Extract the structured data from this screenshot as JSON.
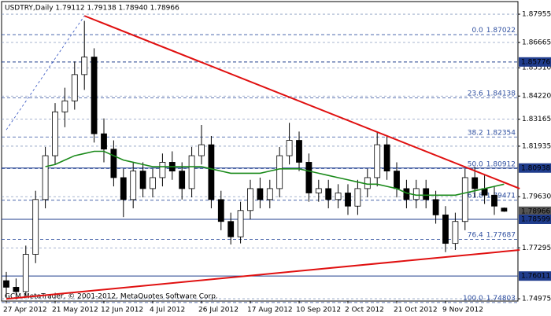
{
  "chart_data": {
    "type": "candlestick",
    "title": "USDTRY,Daily  1.79112 1.79138 1.78940 1.78966",
    "footer": "GCM MetaTrader, © 2001-2012, MetaQuotes Software Corp.",
    "categories": [
      "27 Apr 2012",
      null,
      null,
      null,
      null,
      "21 May 2012",
      null,
      null,
      null,
      null,
      "12 Jun 2012",
      null,
      null,
      null,
      null,
      "4 Jul 2012",
      null,
      null,
      null,
      null,
      "26 Jul 2012",
      null,
      null,
      null,
      null,
      "17 Aug 2012",
      null,
      null,
      null,
      null,
      "10 Sep 2012",
      null,
      null,
      null,
      null,
      "2 Oct 2012",
      null,
      null,
      null,
      null,
      "21 Oct 2012",
      null,
      null,
      null,
      null,
      "9 Nov 2012",
      null,
      null,
      null,
      null,
      null,
      null
    ],
    "open": [
      1.758,
      1.755,
      1.753,
      1.77,
      1.795,
      1.815,
      1.835,
      1.84,
      1.852,
      1.86,
      1.825,
      1.818,
      1.805,
      1.795,
      1.808,
      1.8,
      1.805,
      1.812,
      1.808,
      1.8,
      1.815,
      1.82,
      1.795,
      1.785,
      1.778,
      1.79,
      1.8,
      1.795,
      1.8,
      1.815,
      1.822,
      1.812,
      1.798,
      1.8,
      1.795,
      1.798,
      1.792,
      1.8,
      1.805,
      1.82,
      1.808,
      1.8,
      1.795,
      1.8,
      1.795,
      1.788,
      1.775,
      1.785,
      1.805,
      1.8,
      1.797,
      1.79112
    ],
    "high": [
      1.762,
      1.759,
      1.774,
      1.799,
      1.819,
      1.839,
      1.846,
      1.858,
      1.8765,
      1.864,
      1.832,
      1.822,
      1.809,
      1.812,
      1.812,
      1.809,
      1.816,
      1.817,
      1.812,
      1.819,
      1.829,
      1.824,
      1.799,
      1.789,
      1.794,
      1.804,
      1.805,
      1.804,
      1.819,
      1.83,
      1.826,
      1.816,
      1.804,
      1.804,
      1.802,
      1.802,
      1.804,
      1.809,
      1.826,
      1.824,
      1.812,
      1.804,
      1.804,
      1.804,
      1.799,
      1.792,
      1.789,
      1.809,
      1.81,
      1.806,
      1.801,
      1.79138
    ],
    "low": [
      1.7505,
      1.7495,
      1.751,
      1.766,
      1.791,
      1.811,
      1.828,
      1.836,
      1.845,
      1.821,
      1.812,
      1.801,
      1.787,
      1.791,
      1.796,
      1.796,
      1.801,
      1.804,
      1.795,
      1.796,
      1.811,
      1.791,
      1.781,
      1.7745,
      1.775,
      1.786,
      1.791,
      1.791,
      1.796,
      1.811,
      1.808,
      1.794,
      1.794,
      1.791,
      1.791,
      1.788,
      1.788,
      1.796,
      1.801,
      1.804,
      1.796,
      1.791,
      1.791,
      1.791,
      1.784,
      1.771,
      1.772,
      1.781,
      1.796,
      1.793,
      1.788,
      1.7894
    ],
    "close": [
      1.755,
      1.753,
      1.77,
      1.795,
      1.815,
      1.835,
      1.84,
      1.852,
      1.86,
      1.825,
      1.818,
      1.805,
      1.795,
      1.808,
      1.8,
      1.805,
      1.812,
      1.808,
      1.8,
      1.815,
      1.82,
      1.795,
      1.785,
      1.778,
      1.79,
      1.8,
      1.795,
      1.8,
      1.815,
      1.822,
      1.812,
      1.798,
      1.8,
      1.795,
      1.798,
      1.792,
      1.8,
      1.805,
      1.82,
      1.808,
      1.8,
      1.795,
      1.8,
      1.795,
      1.788,
      1.775,
      1.785,
      1.805,
      1.8,
      1.797,
      1.792,
      1.78966
    ],
    "moving_average": {
      "color": "#1a8a1a",
      "values": [
        null,
        null,
        null,
        null,
        1.81,
        1.811,
        1.813,
        1.815,
        1.816,
        1.817,
        1.817,
        1.815,
        1.813,
        1.812,
        1.811,
        1.81,
        1.81,
        1.81,
        1.81,
        1.81,
        1.81,
        1.809,
        1.808,
        1.807,
        1.807,
        1.807,
        1.807,
        1.808,
        1.809,
        1.809,
        1.809,
        1.808,
        1.807,
        1.806,
        1.805,
        1.804,
        1.803,
        1.802,
        1.802,
        1.801,
        1.8,
        1.798,
        1.797,
        1.797,
        1.797,
        1.797,
        1.797,
        1.798,
        1.799,
        1.8,
        1.801,
        1.802
      ]
    },
    "trendlines": [
      {
        "color": "#e01010",
        "dashed": false,
        "points": [
          [
            8,
            1.8788
          ],
          [
            52.6,
            1.8
          ]
        ]
      },
      {
        "color": "#e01010",
        "dashed": false,
        "points": [
          [
            0,
            1.7497
          ],
          [
            52.6,
            1.772
          ]
        ]
      },
      {
        "color": "#3050c0",
        "dashed": true,
        "points": [
          [
            0,
            1.8268
          ],
          [
            8,
            1.8788
          ]
        ]
      }
    ],
    "fibonacci": {
      "color": "#3050a0",
      "levels": [
        {
          "level": "0.0",
          "price": 1.87022
        },
        {
          "level": "23.6",
          "price": 1.84138
        },
        {
          "level": "38.2",
          "price": 1.82354
        },
        {
          "level": "50.0",
          "price": 1.80912
        },
        {
          "level": "61.8",
          "price": 1.79471
        },
        {
          "level": "76.4",
          "price": 1.77687
        },
        {
          "level": "100.0",
          "price": 1.74803
        }
      ]
    },
    "price_lines": [
      {
        "price": 1.85776,
        "color": "#1f3c8c",
        "line": "dashed"
      },
      {
        "price": 1.80938,
        "color": "#1f3c8c",
        "line": "solid"
      },
      {
        "price": 1.78966,
        "color": "#555555",
        "line": "none"
      },
      {
        "price": 1.78599,
        "color": "#1f3c8c",
        "line": "solid"
      },
      {
        "price": 1.76011,
        "color": "#1f3c8c",
        "line": "solid"
      }
    ],
    "ylim": [
      1.7487,
      1.8853
    ],
    "yticks": [
      1.87955,
      1.86665,
      {
        "value": 1.8551,
        "label": "1.85510"
      },
      {
        "value": 1.8422,
        "label": "1.84220"
      },
      1.83165,
      1.81935,
      {
        "value": 1.7963,
        "label": "1.79630"
      },
      1.77295,
      1.74975
    ],
    "grid": true
  }
}
